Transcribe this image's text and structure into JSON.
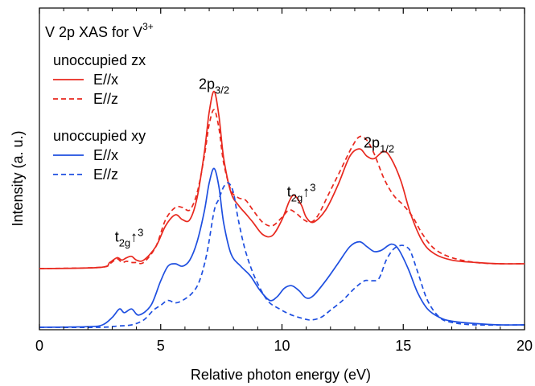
{
  "chart_data": {
    "type": "line",
    "title": "V 2p XAS for V",
    "title_superscript": "3+",
    "xlabel": "Relative photon energy (eV)",
    "ylabel": "Intensity (a. u.)",
    "xlim": [
      0,
      20
    ],
    "x_ticks": [
      0,
      5,
      10,
      15,
      20
    ],
    "x_tick_labels": [
      "0",
      "5",
      "10",
      "15",
      "20"
    ],
    "colors": {
      "zx": "#e8281e",
      "xy": "#1e4fe0",
      "axis": "#000000"
    },
    "legend_groups": [
      {
        "header": "unoccupied zx",
        "entries": [
          {
            "label": "E//x",
            "style": "solid",
            "color": "#e8281e"
          },
          {
            "label": "E//z",
            "style": "dashed",
            "color": "#e8281e"
          }
        ]
      },
      {
        "header": "unoccupied xy",
        "entries": [
          {
            "label": "E//x",
            "style": "solid",
            "color": "#1e4fe0"
          },
          {
            "label": "E//z",
            "style": "dashed",
            "color": "#1e4fe0"
          }
        ]
      }
    ],
    "annotations": [
      {
        "id": "l3",
        "base": "2p",
        "sub": "3/2",
        "x": 7.2,
        "y": 1.95
      },
      {
        "id": "l2",
        "base": "2p",
        "sub": "1/2",
        "x": 14.0,
        "y": 1.47
      },
      {
        "id": "t2g-upper",
        "base": "t",
        "sub": "2g",
        "arrow": "↑",
        "sup": "3",
        "x": 10.8,
        "y": 1.07
      },
      {
        "id": "t2g-lower",
        "base": "t",
        "sub": "2g",
        "arrow": "↑",
        "sup": "3",
        "x": 3.7,
        "y": 0.7
      }
    ],
    "series": [
      {
        "name": "unoccupied zx E//x",
        "group": "zx",
        "style": "solid",
        "color": "#e8281e",
        "offset": 0.48,
        "x": [
          0,
          2.5,
          2.9,
          3.2,
          3.4,
          3.6,
          3.8,
          4.0,
          4.3,
          4.8,
          5.2,
          5.6,
          5.9,
          6.2,
          6.5,
          6.8,
          7.0,
          7.2,
          7.4,
          7.6,
          7.9,
          8.2,
          8.5,
          8.8,
          9.2,
          9.6,
          10.0,
          10.3,
          10.5,
          10.8,
          11.0,
          11.3,
          11.8,
          12.3,
          12.8,
          13.2,
          13.5,
          13.8,
          14.2,
          14.5,
          14.9,
          15.3,
          15.8,
          16.3,
          17.0,
          18.0,
          19.0,
          20.0
        ],
        "y": [
          0.0,
          0.01,
          0.05,
          0.09,
          0.07,
          0.09,
          0.1,
          0.07,
          0.07,
          0.18,
          0.35,
          0.44,
          0.4,
          0.4,
          0.58,
          0.95,
          1.28,
          1.45,
          1.25,
          0.9,
          0.62,
          0.52,
          0.45,
          0.38,
          0.28,
          0.27,
          0.4,
          0.55,
          0.6,
          0.52,
          0.42,
          0.38,
          0.48,
          0.68,
          0.92,
          0.98,
          0.92,
          0.9,
          0.96,
          0.9,
          0.72,
          0.45,
          0.22,
          0.12,
          0.07,
          0.05,
          0.04,
          0.04
        ]
      },
      {
        "name": "unoccupied zx E//z",
        "group": "zx",
        "style": "dashed",
        "color": "#e8281e",
        "offset": 0.48,
        "x": [
          0,
          2.5,
          2.9,
          3.2,
          3.4,
          3.6,
          3.8,
          4.0,
          4.3,
          4.8,
          5.2,
          5.6,
          5.9,
          6.2,
          6.5,
          6.8,
          7.0,
          7.2,
          7.4,
          7.6,
          7.9,
          8.2,
          8.5,
          8.8,
          9.2,
          9.6,
          10.0,
          10.3,
          10.6,
          10.9,
          11.2,
          11.5,
          11.9,
          12.4,
          12.9,
          13.2,
          13.5,
          13.8,
          14.2,
          14.6,
          15.0,
          15.4,
          15.8,
          16.3,
          17.0,
          18.0,
          19.0,
          20.0
        ],
        "y": [
          0.0,
          0.01,
          0.04,
          0.08,
          0.05,
          0.06,
          0.05,
          0.05,
          0.05,
          0.18,
          0.4,
          0.5,
          0.5,
          0.48,
          0.62,
          0.92,
          1.18,
          1.3,
          1.15,
          0.86,
          0.64,
          0.58,
          0.56,
          0.48,
          0.38,
          0.35,
          0.42,
          0.48,
          0.45,
          0.4,
          0.38,
          0.44,
          0.6,
          0.8,
          1.0,
          1.08,
          1.05,
          0.94,
          0.74,
          0.6,
          0.52,
          0.42,
          0.28,
          0.16,
          0.09,
          0.05,
          0.04,
          0.04
        ]
      },
      {
        "name": "unoccupied xy E//x",
        "group": "xy",
        "style": "solid",
        "color": "#1e4fe0",
        "offset": 0.0,
        "x": [
          0,
          2.0,
          2.6,
          3.0,
          3.3,
          3.5,
          3.8,
          4.1,
          4.6,
          5.0,
          5.3,
          5.6,
          5.9,
          6.2,
          6.5,
          6.8,
          7.0,
          7.2,
          7.4,
          7.6,
          7.9,
          8.3,
          8.7,
          9.1,
          9.5,
          9.8,
          10.1,
          10.4,
          10.7,
          11.0,
          11.3,
          11.8,
          12.3,
          12.8,
          13.2,
          13.5,
          13.8,
          14.1,
          14.5,
          14.8,
          15.2,
          15.6,
          16.0,
          16.5,
          17.0,
          18.0,
          19.0,
          20.0
        ],
        "y": [
          0.0,
          0.005,
          0.02,
          0.08,
          0.15,
          0.12,
          0.15,
          0.1,
          0.18,
          0.38,
          0.5,
          0.52,
          0.5,
          0.55,
          0.7,
          0.95,
          1.18,
          1.3,
          1.15,
          0.85,
          0.6,
          0.5,
          0.42,
          0.3,
          0.22,
          0.25,
          0.32,
          0.34,
          0.3,
          0.24,
          0.26,
          0.38,
          0.52,
          0.66,
          0.7,
          0.66,
          0.62,
          0.63,
          0.68,
          0.64,
          0.48,
          0.28,
          0.15,
          0.08,
          0.05,
          0.03,
          0.02,
          0.02
        ]
      },
      {
        "name": "unoccupied xy E//z",
        "group": "xy",
        "style": "dashed",
        "color": "#1e4fe0",
        "offset": 0.0,
        "x": [
          0,
          2.5,
          3.2,
          3.8,
          4.3,
          4.7,
          5.0,
          5.3,
          5.6,
          5.9,
          6.3,
          6.6,
          6.9,
          7.2,
          7.4,
          7.6,
          7.8,
          8.0,
          8.2,
          8.5,
          8.9,
          9.4,
          9.9,
          10.4,
          10.9,
          11.2,
          11.6,
          12.0,
          12.5,
          13.0,
          13.4,
          13.7,
          14.0,
          14.3,
          14.6,
          14.9,
          15.1,
          15.3,
          15.6,
          16.0,
          16.5,
          17.0,
          18.0,
          20.0
        ],
        "y": [
          0.0,
          0.0,
          0.01,
          0.02,
          0.06,
          0.14,
          0.18,
          0.22,
          0.2,
          0.22,
          0.28,
          0.38,
          0.6,
          0.95,
          1.05,
          1.15,
          1.18,
          1.1,
          0.88,
          0.62,
          0.4,
          0.22,
          0.15,
          0.1,
          0.07,
          0.06,
          0.08,
          0.14,
          0.22,
          0.32,
          0.38,
          0.38,
          0.4,
          0.55,
          0.64,
          0.67,
          0.66,
          0.62,
          0.45,
          0.22,
          0.08,
          0.04,
          0.02,
          0.02
        ]
      }
    ]
  }
}
